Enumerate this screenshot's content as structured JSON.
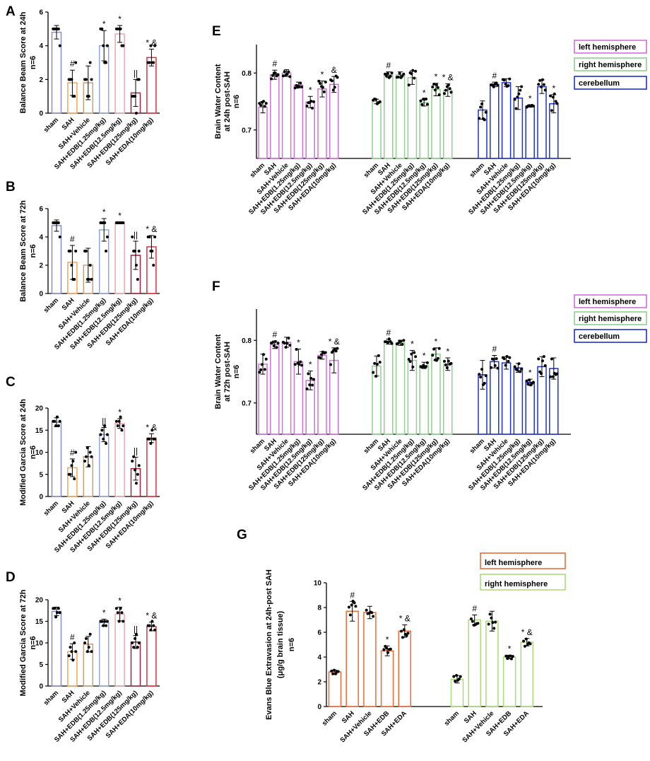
{
  "colors": {
    "purple": "#8a8ec8",
    "orange": "#f2a65a",
    "tan": "#c9a07a",
    "lightblue": "#8fa6d8",
    "pink": "#e6a8b4",
    "darkred": "#a8203a",
    "red": "#e0303a",
    "magenta": "#d070d8",
    "green": "#8ed08e",
    "blue": "#1d2fd8",
    "evOrange": "#ef6a33",
    "evGreen": "#a8dc78"
  },
  "chart_data": [
    {
      "panel": "A",
      "type": "bar",
      "ylabel": "Balance Beam Score at 24h",
      "ylabel2": "n=6",
      "ylim": [
        0,
        6
      ],
      "yticks": [
        0,
        2,
        4,
        6
      ],
      "categories": [
        "sham",
        "SAH",
        "SAH+Vehicle",
        "SAH+EDB(1.25mg/kg)",
        "SAH+EDB(12.5mg/kg)",
        "SAH+EDB(125mg/kg)",
        "SAH+EDA(10mg/kg)"
      ],
      "values": [
        4.8,
        1.8,
        1.8,
        4.0,
        4.7,
        1.2,
        3.3
      ],
      "errors": [
        0.4,
        0.75,
        1.0,
        0.9,
        0.5,
        0.8,
        0.5
      ],
      "points": [
        [
          5,
          5,
          5,
          5,
          5,
          4
        ],
        [
          2,
          2,
          2,
          1,
          1,
          3
        ],
        [
          2,
          2,
          1,
          1,
          3,
          2
        ],
        [
          5,
          5,
          4,
          3,
          3,
          4
        ],
        [
          5,
          5,
          5,
          5,
          4,
          4
        ],
        [
          1,
          1,
          1,
          0,
          2,
          2
        ],
        [
          3,
          3,
          4,
          3,
          3,
          4
        ]
      ],
      "annotations": [
        "",
        "#",
        "",
        "*",
        "*",
        "||",
        "* &"
      ],
      "colors": [
        "purple",
        "orange",
        "tan",
        "lightblue",
        "pink",
        "darkred",
        "red"
      ]
    },
    {
      "panel": "B",
      "type": "bar",
      "ylabel": "Balance Beam Score at 72h",
      "ylabel2": "n=6",
      "ylim": [
        0,
        6
      ],
      "yticks": [
        0,
        2,
        4,
        6
      ],
      "categories": [
        "sham",
        "SAH",
        "SAH+Vehicle",
        "SAH+EDB(1.25mg/kg)",
        "SAH+EDB(12.5mg/kg)",
        "SAH+EDB(125mg/kg)",
        "SAH+EDA(10mg/kg)"
      ],
      "values": [
        4.8,
        2.2,
        2.0,
        4.5,
        5.0,
        2.7,
        3.3
      ],
      "errors": [
        0.4,
        1.2,
        1.2,
        0.8,
        0.05,
        1.0,
        0.8
      ],
      "points": [
        [
          5,
          5,
          5,
          5,
          5,
          4
        ],
        [
          3,
          3,
          2,
          1,
          1,
          3
        ],
        [
          3,
          3,
          1,
          1,
          2,
          1
        ],
        [
          5,
          5,
          5,
          5,
          3,
          4
        ],
        [
          5,
          5,
          5,
          5,
          5,
          5
        ],
        [
          4,
          3,
          3,
          2,
          1,
          3
        ],
        [
          4,
          4,
          3,
          3,
          2,
          4
        ]
      ],
      "annotations": [
        "",
        "#",
        "",
        "*",
        "*",
        "||",
        "* &"
      ],
      "colors": [
        "purple",
        "orange",
        "tan",
        "lightblue",
        "pink",
        "darkred",
        "red"
      ]
    },
    {
      "panel": "C",
      "type": "bar",
      "ylabel": "Modified Garcia Score at 24h",
      "ylabel2": "n=6",
      "ylim": [
        0,
        20
      ],
      "yticks": [
        0,
        5,
        10,
        15,
        20
      ],
      "categories": [
        "sham",
        "SAH",
        "SAH+Vehicle",
        "SAH+EDB(1.25mg/kg)",
        "SAH+EDB(12.5mg/kg)",
        "SAH+EDB(125mg/kg)",
        "SAH+EDA(10mg/kg)"
      ],
      "values": [
        16.8,
        6.5,
        9.0,
        14.0,
        16.5,
        6.3,
        13.2
      ],
      "errors": [
        1.0,
        2.0,
        2.3,
        1.6,
        1.1,
        2.6,
        1.0
      ],
      "points": [
        [
          17,
          17,
          16,
          18,
          16,
          17
        ],
        [
          5,
          5,
          7,
          8,
          4,
          10
        ],
        [
          8,
          9,
          11,
          7,
          10,
          9
        ],
        [
          14,
          15,
          13,
          16,
          12,
          14
        ],
        [
          17,
          16,
          17,
          18,
          15,
          16
        ],
        [
          8,
          9,
          6,
          3,
          5,
          7
        ],
        [
          13,
          13,
          12,
          15,
          13,
          13
        ]
      ],
      "annotations": [
        "",
        "#",
        "",
        "||",
        "*",
        "||",
        "* &"
      ],
      "colors": [
        "purple",
        "orange",
        "tan",
        "lightblue",
        "pink",
        "darkred",
        "red"
      ]
    },
    {
      "panel": "D",
      "type": "bar",
      "ylabel": "Modified Garcia Score at 72h",
      "ylabel2": "n=6",
      "ylim": [
        0,
        20
      ],
      "yticks": [
        0,
        5,
        10,
        15,
        20
      ],
      "categories": [
        "sham",
        "SAH",
        "SAH+Vehicle",
        "SAH+EDB(1.25mg/kg)",
        "SAH+EDB(12.5mg/kg)",
        "SAH+EDB(125mg/kg)",
        "SAH+EDA(10mg/kg)"
      ],
      "values": [
        17.3,
        8.0,
        9.7,
        14.7,
        16.7,
        10.2,
        13.8
      ],
      "errors": [
        1.0,
        1.8,
        1.8,
        0.8,
        1.6,
        1.5,
        1.0
      ],
      "points": [
        [
          18,
          18,
          16,
          17,
          18,
          17
        ],
        [
          7,
          9,
          8,
          6,
          10,
          8
        ],
        [
          10,
          11,
          8,
          9,
          12,
          8
        ],
        [
          15,
          15,
          14,
          15,
          14,
          15
        ],
        [
          18,
          17,
          15,
          18,
          17,
          15
        ],
        [
          10,
          9,
          11,
          12,
          9,
          10
        ],
        [
          14,
          14,
          13,
          15,
          14,
          13
        ]
      ],
      "annotations": [
        "",
        "#",
        "",
        "*",
        "*",
        "||",
        "* &"
      ],
      "colors": [
        "purple",
        "orange",
        "tan",
        "lightblue",
        "pink",
        "darkred",
        "red"
      ]
    },
    {
      "panel": "E",
      "type": "bar",
      "ylabel": "Brain Water Content",
      "ylabel2": "at 24h post-SAH",
      "ylabel3": "n=6",
      "ylim": [
        0.65,
        0.85
      ],
      "yticks": [
        0.7,
        0.8
      ],
      "categories": [
        "sham",
        "SAH",
        "SAH+Vehicle",
        "SAH+EDB(1.25mg/kg)",
        "SAH+EDB(12.5mg/kg)",
        "SAH+EDB(125mg/kg)",
        "SAH+EDA(10mg/kg)"
      ],
      "legend": [
        "left hemisphere",
        "right hemisphere",
        "cerebellum"
      ],
      "series": [
        {
          "name": "left hemisphere",
          "color": "magenta",
          "values": [
            0.74,
            0.797,
            0.8,
            0.779,
            0.749,
            0.772,
            0.78
          ],
          "errors": [
            0.01,
            0.008,
            0.006,
            0.005,
            0.01,
            0.014,
            0.014
          ],
          "annotations": [
            "",
            "#",
            "",
            "",
            "*",
            "*",
            "&"
          ]
        },
        {
          "name": "right hemisphere",
          "color": "green",
          "values": [
            0.75,
            0.797,
            0.797,
            0.792,
            0.748,
            0.771,
            0.77
          ],
          "errors": [
            0.004,
            0.005,
            0.005,
            0.012,
            0.006,
            0.011,
            0.011
          ],
          "annotations": [
            "",
            "#",
            "",
            "",
            "*",
            "*",
            "* &"
          ]
        },
        {
          "name": "cerebellum",
          "color": "blue",
          "values": [
            0.735,
            0.78,
            0.783,
            0.756,
            0.742,
            0.776,
            0.746
          ],
          "errors": [
            0.016,
            0.004,
            0.007,
            0.02,
            0.002,
            0.012,
            0.016
          ],
          "annotations": [
            "",
            "#",
            "",
            "",
            "*",
            "",
            "*"
          ]
        }
      ]
    },
    {
      "panel": "F",
      "type": "bar",
      "ylabel": "Brain Water Content",
      "ylabel2": "at 72h post-SAH",
      "ylabel3": "n=6",
      "ylim": [
        0.65,
        0.85
      ],
      "yticks": [
        0.7,
        0.8
      ],
      "categories": [
        "sham",
        "SAH",
        "SAH+Vehicle",
        "SAH+EDB(1.25mg/kg)",
        "SAH+EDB(12.5mg/kg)",
        "SAH+EDB(125mg/kg)",
        "SAH+EDA(10mg/kg)"
      ],
      "legend": [
        "left hemisphere",
        "right hemisphere",
        "cerebellum"
      ],
      "series": [
        {
          "name": "left hemisphere",
          "color": "magenta",
          "values": [
            0.762,
            0.793,
            0.797,
            0.766,
            0.736,
            0.776,
            0.768
          ],
          "errors": [
            0.016,
            0.006,
            0.008,
            0.02,
            0.015,
            0.006,
            0.02
          ],
          "annotations": [
            "",
            "#",
            "",
            "*",
            "*",
            "",
            "* &"
          ]
        },
        {
          "name": "right hemisphere",
          "color": "green",
          "values": [
            0.759,
            0.798,
            0.796,
            0.768,
            0.76,
            0.778,
            0.762
          ],
          "errors": [
            0.016,
            0.004,
            0.004,
            0.016,
            0.005,
            0.01,
            0.01
          ],
          "annotations": [
            "",
            "#",
            "",
            "*",
            "*",
            "*",
            "*"
          ]
        },
        {
          "name": "cerebellum",
          "color": "blue",
          "values": [
            0.745,
            0.766,
            0.764,
            0.756,
            0.733,
            0.758,
            0.755
          ],
          "errors": [
            0.023,
            0.01,
            0.01,
            0.007,
            0.005,
            0.016,
            0.017
          ],
          "annotations": [
            "",
            "#",
            "",
            "",
            "*",
            "",
            ""
          ]
        }
      ]
    },
    {
      "panel": "G",
      "type": "bar",
      "ylabel": "Evans Blue Extravasion at 24h-post SAH",
      "ylabel2": "(μg/g brain tissue)",
      "ylabel3": "n=6",
      "ylim": [
        0,
        10
      ],
      "yticks": [
        0,
        2,
        4,
        6,
        8,
        10
      ],
      "categories": [
        "sham",
        "SAH",
        "SAH+Vehicle",
        "SAH+EDB",
        "SAH+EDA"
      ],
      "legend": [
        "left hemisphere",
        "right hemisphere"
      ],
      "series": [
        {
          "name": "left hemisphere",
          "color": "evOrange",
          "values": [
            2.8,
            7.7,
            7.6,
            4.5,
            6.1
          ],
          "errors": [
            0.15,
            0.8,
            0.5,
            0.4,
            0.5
          ],
          "annotations": [
            "",
            "#",
            "",
            "*",
            "* &"
          ]
        },
        {
          "name": "right hemisphere",
          "color": "evGreen",
          "values": [
            2.2,
            7.0,
            6.9,
            4.0,
            5.2
          ],
          "errors": [
            0.3,
            0.4,
            0.8,
            0.15,
            0.3
          ],
          "annotations": [
            "",
            "#",
            "",
            "*",
            "* &"
          ]
        }
      ]
    }
  ]
}
